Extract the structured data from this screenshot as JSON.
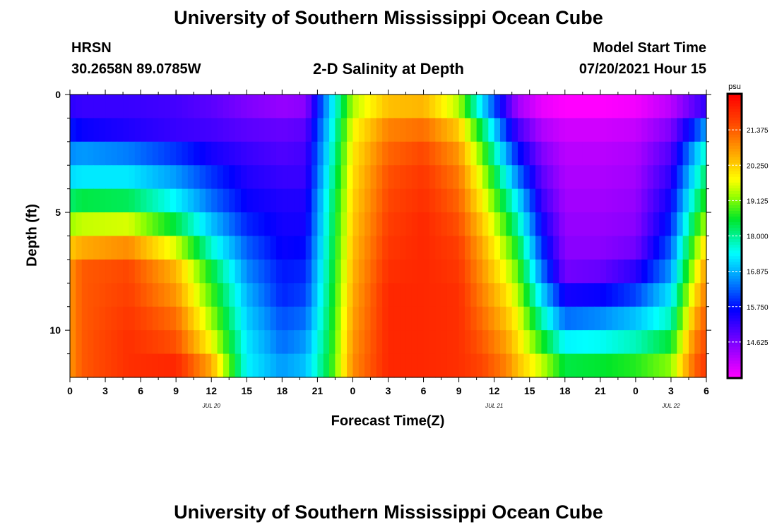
{
  "header": {
    "title": "University of Southern Mississippi Ocean Cube",
    "station_id": "HRSN",
    "coords": "30.2658N  89.0785W",
    "subtitle": "2-D Salinity at Depth",
    "start_label": "Model Start Time",
    "start_value": "07/20/2021 Hour 15"
  },
  "footer": {
    "title": "University of Southern Mississippi Ocean Cube"
  },
  "chart_data": {
    "type": "heatmap",
    "title": "2-D Salinity at Depth",
    "xlabel": "Forecast Time(Z)",
    "ylabel": "Depth (ft)",
    "x_tick_labels": [
      "0",
      "3",
      "6",
      "9",
      "12",
      "15",
      "18",
      "21",
      "0",
      "3",
      "6",
      "9",
      "12",
      "15",
      "18",
      "21",
      "0",
      "3",
      "6"
    ],
    "x_date_labels": [
      {
        "label": "JUL 20",
        "hour": 12
      },
      {
        "label": "JUL 21",
        "hour": 36
      },
      {
        "label": "JUL 22",
        "hour": 51
      }
    ],
    "x_range_hours": [
      0,
      54
    ],
    "y_tick_labels": [
      "0",
      "5",
      "10"
    ],
    "y_ticks": [
      0,
      5,
      10
    ],
    "ylim": [
      0,
      12
    ],
    "colorbar": {
      "unit": "psu",
      "ticks": [
        "21.375",
        "20.250",
        "19.125",
        "18.000",
        "16.875",
        "15.750",
        "14.625"
      ],
      "tick_values": [
        21.375,
        20.25,
        19.125,
        18.0,
        16.875,
        15.75,
        14.625
      ],
      "range": [
        13.5,
        22.5
      ]
    },
    "depth_levels": [
      0.5,
      1.5,
      2.5,
      3.5,
      4.5,
      5.5,
      6.5,
      7.5,
      8.5,
      9.5,
      10.5,
      11.5
    ],
    "keyframes": [
      {
        "hour": 0,
        "values": [
          15.3,
          15.8,
          16.6,
          17.2,
          18.2,
          19.3,
          20.3,
          20.8,
          20.8,
          20.8,
          20.8,
          20.8
        ]
      },
      {
        "hour": 1,
        "values": [
          15.2,
          15.6,
          16.7,
          17.3,
          18.4,
          19.5,
          20.6,
          21.4,
          21.4,
          21.4,
          21.4,
          21.4
        ]
      },
      {
        "hour": 5,
        "values": [
          15.2,
          15.4,
          16.5,
          17.3,
          18.3,
          19.6,
          20.9,
          21.6,
          21.7,
          21.8,
          21.9,
          21.9
        ]
      },
      {
        "hour": 9,
        "values": [
          15.1,
          15.2,
          16.0,
          16.7,
          17.4,
          18.4,
          19.6,
          20.5,
          20.8,
          21.2,
          21.5,
          22.0
        ]
      },
      {
        "hour": 12,
        "values": [
          14.9,
          15.1,
          15.5,
          16.0,
          16.4,
          17.0,
          17.7,
          18.5,
          18.9,
          19.3,
          19.8,
          20.6
        ]
      },
      {
        "hour": 15,
        "values": [
          14.6,
          14.9,
          15.2,
          15.4,
          15.6,
          15.9,
          16.3,
          16.6,
          16.9,
          17.1,
          17.3,
          17.4
        ]
      },
      {
        "hour": 18,
        "values": [
          14.4,
          14.8,
          15.0,
          15.2,
          15.4,
          15.5,
          15.6,
          15.8,
          15.9,
          16.2,
          16.4,
          16.7
        ]
      },
      {
        "hour": 20,
        "values": [
          14.5,
          14.9,
          15.1,
          15.2,
          15.4,
          15.5,
          15.7,
          15.9,
          16.1,
          16.4,
          16.7,
          17.0
        ]
      },
      {
        "hour": 22,
        "values": [
          17.0,
          17.2,
          17.4,
          17.6,
          17.8,
          17.9,
          18.0,
          18.1,
          18.2,
          18.3,
          18.4,
          18.5
        ]
      },
      {
        "hour": 24,
        "values": [
          19.4,
          19.8,
          20.0,
          20.1,
          20.2,
          20.3,
          20.4,
          20.5,
          20.6,
          20.7,
          20.8,
          20.9
        ]
      },
      {
        "hour": 27,
        "values": [
          20.4,
          21.0,
          21.3,
          21.5,
          21.6,
          21.7,
          21.8,
          21.9,
          22.0,
          22.0,
          22.0,
          22.0
        ]
      },
      {
        "hour": 30,
        "values": [
          20.5,
          21.2,
          21.6,
          21.8,
          21.9,
          22.0,
          22.0,
          22.0,
          22.0,
          22.0,
          22.0,
          22.0
        ]
      },
      {
        "hour": 33,
        "values": [
          19.4,
          20.3,
          20.8,
          21.1,
          21.3,
          21.5,
          21.7,
          21.8,
          21.9,
          21.9,
          21.9,
          21.9
        ]
      },
      {
        "hour": 35,
        "values": [
          17.2,
          18.3,
          19.0,
          19.5,
          19.9,
          20.3,
          20.6,
          20.8,
          21.0,
          21.2,
          21.4,
          21.6
        ]
      },
      {
        "hour": 37,
        "values": [
          15.2,
          16.0,
          16.8,
          17.5,
          18.2,
          18.8,
          19.3,
          19.7,
          20.1,
          20.4,
          20.7,
          21.0
        ]
      },
      {
        "hour": 38,
        "values": [
          14.3,
          15.1,
          15.8,
          16.5,
          17.3,
          17.9,
          18.5,
          19.0,
          19.4,
          19.8,
          20.1,
          20.4
        ]
      },
      {
        "hour": 40,
        "values": [
          13.7,
          14.2,
          14.6,
          14.9,
          15.2,
          15.6,
          16.0,
          16.5,
          17.2,
          17.9,
          18.7,
          19.5
        ]
      },
      {
        "hour": 42,
        "values": [
          13.5,
          13.9,
          14.1,
          14.2,
          14.3,
          14.4,
          14.5,
          14.7,
          15.5,
          16.4,
          17.4,
          18.4
        ]
      },
      {
        "hour": 45,
        "values": [
          13.5,
          13.9,
          14.1,
          14.2,
          14.3,
          14.4,
          14.5,
          14.8,
          15.6,
          16.6,
          17.5,
          18.5
        ]
      },
      {
        "hour": 48,
        "values": [
          13.6,
          14.0,
          14.2,
          14.3,
          14.4,
          14.5,
          14.7,
          15.3,
          16.1,
          17.0,
          17.8,
          18.7
        ]
      },
      {
        "hour": 51,
        "values": [
          14.1,
          14.6,
          15.0,
          15.3,
          15.6,
          15.9,
          16.3,
          16.7,
          17.3,
          17.8,
          18.5,
          19.2
        ]
      },
      {
        "hour": 53,
        "values": [
          14.9,
          16.0,
          16.9,
          17.4,
          17.9,
          18.5,
          19.1,
          19.6,
          20.1,
          20.6,
          21.0,
          21.3
        ]
      },
      {
        "hour": 54,
        "values": [
          15.3,
          16.8,
          17.8,
          18.3,
          18.8,
          19.4,
          20.2,
          20.8,
          21.1,
          21.4,
          21.6,
          21.8
        ]
      }
    ]
  }
}
